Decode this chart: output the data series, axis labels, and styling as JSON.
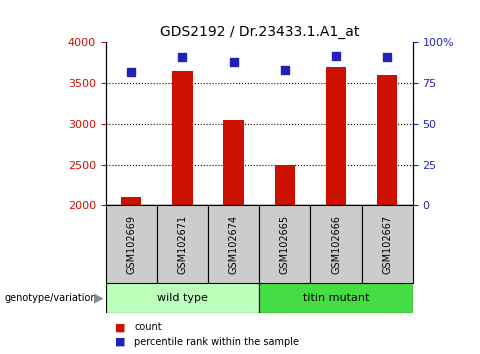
{
  "title": "GDS2192 / Dr.23433.1.A1_at",
  "samples": [
    "GSM102669",
    "GSM102671",
    "GSM102674",
    "GSM102665",
    "GSM102666",
    "GSM102667"
  ],
  "counts": [
    2100,
    3650,
    3050,
    2500,
    3700,
    3600
  ],
  "percentiles": [
    82,
    91,
    88,
    83,
    92,
    91
  ],
  "ylim_left": [
    2000,
    4000
  ],
  "ylim_right": [
    0,
    100
  ],
  "yticks_left": [
    2000,
    2500,
    3000,
    3500,
    4000
  ],
  "yticks_right": [
    0,
    25,
    50,
    75,
    100
  ],
  "ytick_labels_right": [
    "0",
    "25",
    "50",
    "75",
    "100%"
  ],
  "bar_color": "#cc1100",
  "dot_color": "#2222bb",
  "bg_label_area": "#cccccc",
  "group1_color": "#bbffbb",
  "group2_color": "#44dd44",
  "group1_label": "wild type",
  "group2_label": "titin mutant",
  "group1_indices": [
    0,
    1,
    2
  ],
  "group2_indices": [
    3,
    4,
    5
  ],
  "genotype_label": "genotype/variation",
  "legend_count_label": "count",
  "legend_pct_label": "percentile rank within the sample",
  "title_fontsize": 10,
  "tick_fontsize": 8,
  "bar_width": 0.4,
  "dot_size": 40
}
